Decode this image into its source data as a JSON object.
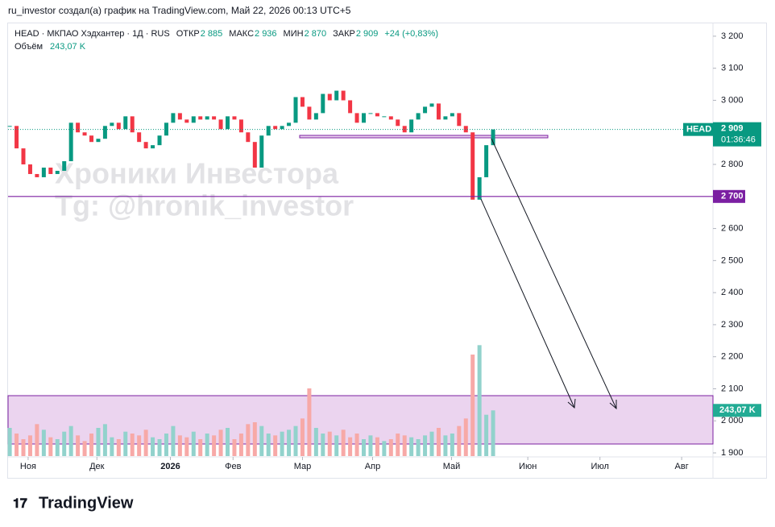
{
  "header": "ru_investor создал(а) график на TradingView.com, Май 22, 2026 00:13 UTC+5",
  "legend": {
    "symbol": "HEAD · МКПАО Хэдхантер · 1Д · RUS",
    "ohlc": [
      {
        "label": "ОТКР",
        "value": "2 885"
      },
      {
        "label": "МАКС",
        "value": "2 936"
      },
      {
        "label": "МИН",
        "value": "2 870"
      },
      {
        "label": "ЗАКР",
        "value": "2 909"
      }
    ],
    "change": "+24 (+0,83%)",
    "volume_label": "Объём",
    "volume_value": "243,07 K"
  },
  "watermark": [
    "Хроники Инвестора",
    "Tg: @hronik_investor"
  ],
  "brand": "TradingView",
  "chart_data": {
    "type": "candlestick",
    "ylim": [
      1887.5,
      3237.5
    ],
    "yticks": [
      {
        "value": 1900,
        "label": "1 900"
      },
      {
        "value": 2000,
        "label": "2 000"
      },
      {
        "value": 2100,
        "label": "2 100"
      },
      {
        "value": 2200,
        "label": "2 200"
      },
      {
        "value": 2300,
        "label": "2 300"
      },
      {
        "value": 2400,
        "label": "2 400"
      },
      {
        "value": 2500,
        "label": "2 500"
      },
      {
        "value": 2600,
        "label": "2 600"
      },
      {
        "value": 2700,
        "label": "2 700"
      },
      {
        "value": 2800,
        "label": "2 800"
      },
      {
        "value": 2900,
        "label": "2 900"
      },
      {
        "value": 3000,
        "label": "3 000"
      },
      {
        "value": 3100,
        "label": "3 100"
      },
      {
        "value": 3200,
        "label": "3 200"
      }
    ],
    "xlim": [
      -0.25,
      103.3
    ],
    "xticks": [
      {
        "value": 2.7,
        "label": "Ноя"
      },
      {
        "value": 12.8,
        "label": "Дек"
      },
      {
        "value": 23.6,
        "label": "2026"
      },
      {
        "value": 32.8,
        "label": "Фев"
      },
      {
        "value": 43,
        "label": "Мар"
      },
      {
        "value": 53.3,
        "label": "Апр"
      },
      {
        "value": 64.9,
        "label": "Май"
      },
      {
        "value": 76.1,
        "label": "Июн"
      },
      {
        "value": 86.7,
        "label": "Июл"
      },
      {
        "value": 98.7,
        "label": "Авг"
      }
    ],
    "series": [
      {
        "name": "HEAD",
        "up_color": "#089981",
        "down_color": "#f23645",
        "values": [
          2920,
          2850,
          2800,
          2770,
          2760,
          2790,
          2770,
          2780,
          2810,
          2930,
          2900,
          2890,
          2870,
          2880,
          2920,
          2930,
          2910,
          2950,
          2900,
          2870,
          2850,
          2860,
          2890,
          2930,
          2960,
          2940,
          2930,
          2950,
          2940,
          2950,
          2940,
          2910,
          2950,
          2940,
          2900,
          2870,
          2790,
          2890,
          2920,
          2910,
          2920,
          2930,
          3010,
          2980,
          2940,
          2960,
          3020,
          3000,
          3030,
          3000,
          2960,
          2930,
          2960,
          2960,
          2950,
          2950,
          2940,
          2920,
          2900,
          2940,
          2960,
          2980,
          2990,
          2940,
          2950,
          2960,
          2920,
          2900,
          2690,
          2760,
          2860,
          2909
        ],
        "last_label": "2 909",
        "countdown": "01:36:46"
      },
      {
        "name": "Объём",
        "axis": "y2",
        "up_color": "#92d2cc",
        "down_color": "#f7a9a7",
        "values": [
          150,
          120,
          90,
          110,
          170,
          140,
          100,
          90,
          130,
          160,
          110,
          80,
          120,
          150,
          170,
          100,
          90,
          130,
          120,
          110,
          140,
          100,
          90,
          120,
          160,
          110,
          100,
          130,
          90,
          120,
          110,
          140,
          150,
          90,
          120,
          170,
          180,
          160,
          120,
          110,
          130,
          140,
          160,
          200,
          360,
          150,
          120,
          130,
          110,
          140,
          100,
          120,
          90,
          110,
          100,
          80,
          90,
          120,
          110,
          100,
          90,
          110,
          130,
          150,
          110,
          120,
          160,
          200,
          540,
          590,
          220,
          243.07
        ],
        "last_label": "243,07 K"
      }
    ],
    "y2lim": [
      0,
      600
    ],
    "levels": [
      {
        "value": 2700,
        "label": "2 700",
        "color": "#7b1fa2"
      }
    ]
  }
}
